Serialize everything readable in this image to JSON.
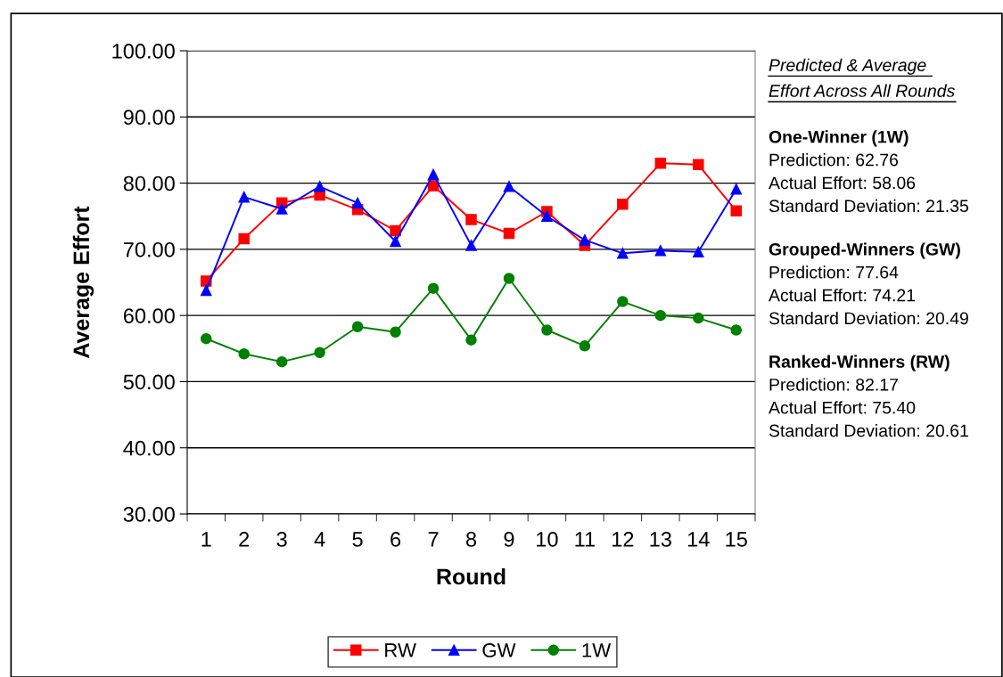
{
  "chart_data": {
    "type": "line",
    "xlabel": "Round",
    "ylabel": "Average Effort",
    "categories": [
      "1",
      "2",
      "3",
      "4",
      "5",
      "6",
      "7",
      "8",
      "9",
      "10",
      "11",
      "12",
      "13",
      "14",
      "15"
    ],
    "series": [
      {
        "name": "RW",
        "color": "#ff0000",
        "marker": "square",
        "values": [
          65.2,
          71.6,
          77.0,
          78.2,
          76.0,
          72.8,
          79.6,
          74.5,
          72.4,
          75.7,
          70.6,
          76.8,
          83.0,
          82.8,
          75.8
        ]
      },
      {
        "name": "GW",
        "color": "#0000ff",
        "marker": "triangle",
        "values": [
          63.8,
          77.9,
          76.1,
          79.5,
          77.0,
          71.2,
          81.3,
          70.6,
          79.5,
          75.0,
          71.4,
          69.4,
          69.8,
          69.6,
          79.1
        ]
      },
      {
        "name": "1W",
        "color": "#008000",
        "marker": "circle",
        "values": [
          56.5,
          54.2,
          53.0,
          54.4,
          58.3,
          57.5,
          64.1,
          56.3,
          65.6,
          57.8,
          55.4,
          62.1,
          60.0,
          59.6,
          57.8
        ]
      }
    ],
    "ylim": [
      30,
      100
    ],
    "yticks": [
      {
        "value": 30,
        "label": "30.00"
      },
      {
        "value": 40,
        "label": "40.00"
      },
      {
        "value": 50,
        "label": "50.00"
      },
      {
        "value": 60,
        "label": "60.00"
      },
      {
        "value": 70,
        "label": "70.00"
      },
      {
        "value": 80,
        "label": "80.00"
      },
      {
        "value": 90,
        "label": "90.00"
      },
      {
        "value": 100,
        "label": "100.00"
      }
    ],
    "grid": "y",
    "legend": "bottom",
    "line_style": "solid",
    "annotations": [
      "Predicted & Average ",
      "Effort Across All Rounds",
      "One-Winner (1W)",
      "Prediction: 62.76",
      "Actual Effort: 58.06",
      "Standard Deviation: 21.35",
      "Grouped-Winners (GW)",
      "Prediction: 77.64",
      "Actual Effort: 74.21",
      "Standard Deviation: 20.49",
      "Ranked-Winners (RW)",
      "Prediction: 82.17",
      "Actual Effort: 75.40",
      "Standard Deviation: 20.61"
    ]
  }
}
